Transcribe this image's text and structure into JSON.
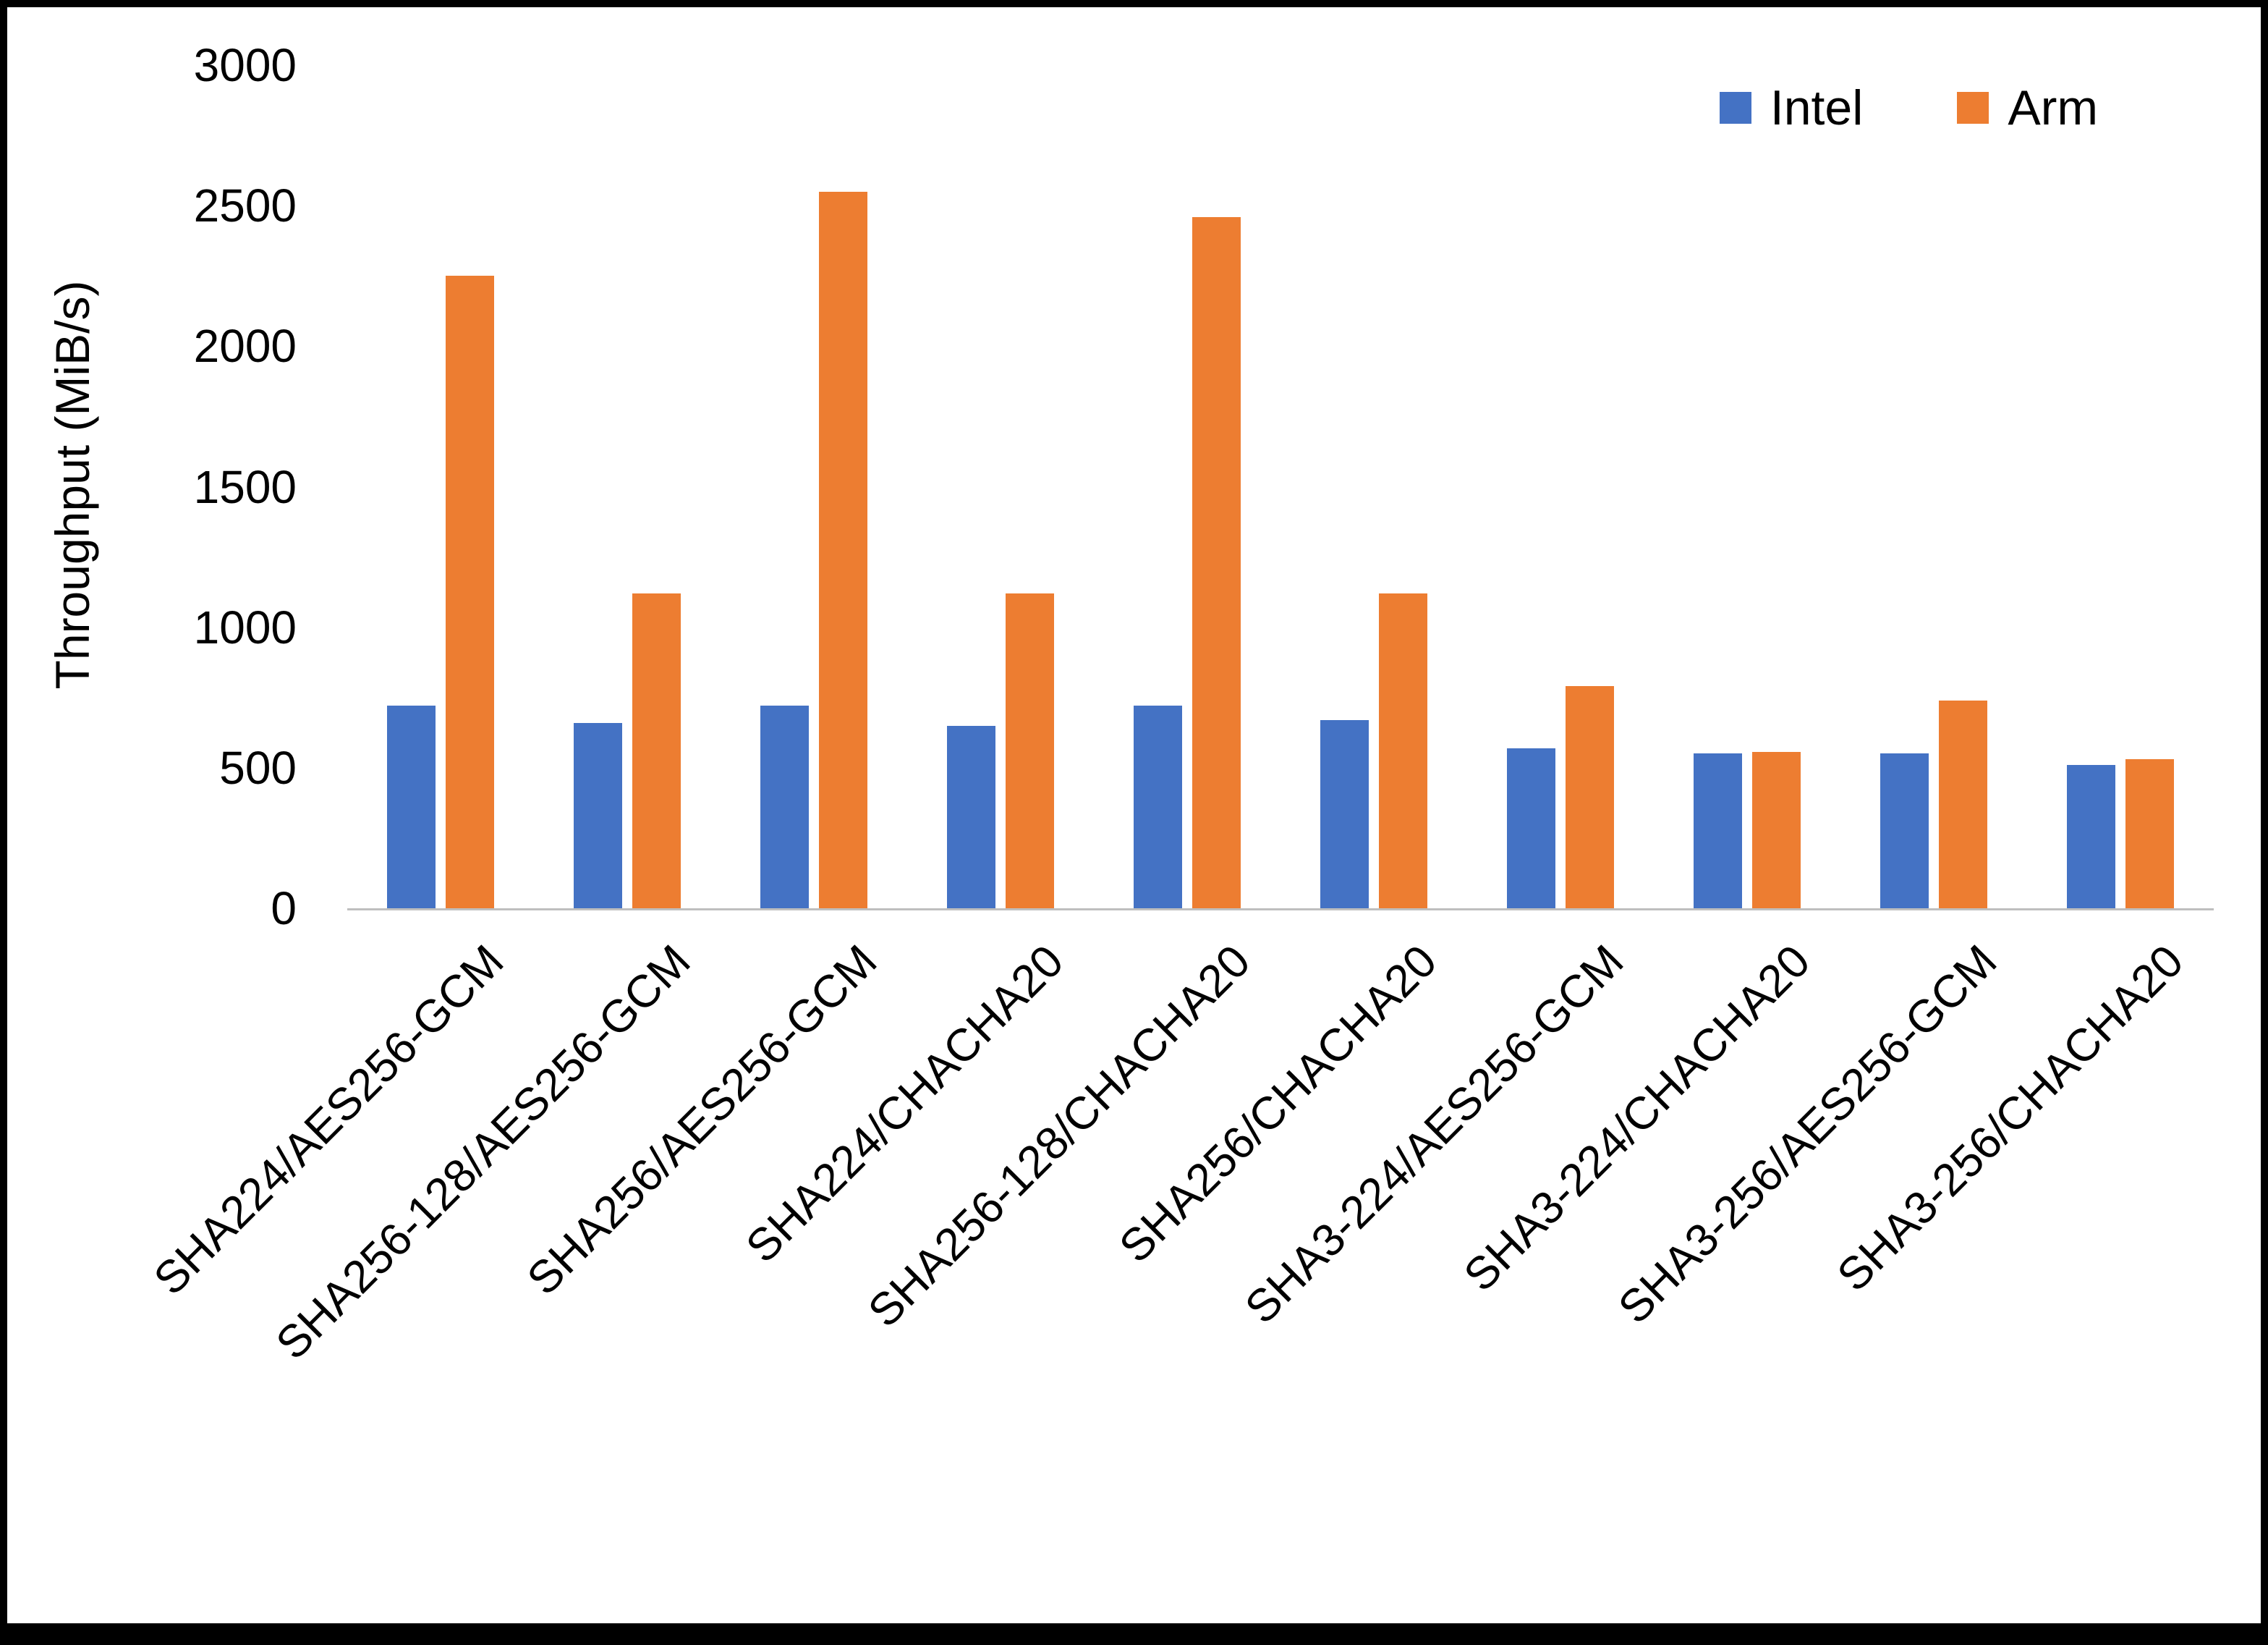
{
  "chart_data": {
    "type": "bar",
    "title": "",
    "xlabel": "",
    "ylabel": "Throughput (MiB/s)",
    "ylim": [
      0,
      3000
    ],
    "yticks": [
      0,
      500,
      1000,
      1500,
      2000,
      2500,
      3000
    ],
    "grid": false,
    "legend_position": "top-right",
    "categories": [
      "SHA224/AES256-GCM",
      "SHA256-128/AES256-GCM",
      "SHA256/AES256-GCM",
      "SHA224/CHACHA20",
      "SHA256-128/CHACHA20",
      "SHA256/CHACHA20",
      "SHA3-224/AES256-GCM",
      "SHA3-224/CHACHA20",
      "SHA3-256/AES256-GCM",
      "SHA3-256/CHACHA20"
    ],
    "series": [
      {
        "name": "Intel",
        "color": "#4472C4",
        "values": [
          720,
          660,
          720,
          650,
          720,
          670,
          570,
          550,
          550,
          510
        ]
      },
      {
        "name": "Arm",
        "color": "#ED7D31",
        "values": [
          2250,
          1120,
          2550,
          1120,
          2460,
          1120,
          790,
          555,
          740,
          530
        ]
      }
    ]
  }
}
